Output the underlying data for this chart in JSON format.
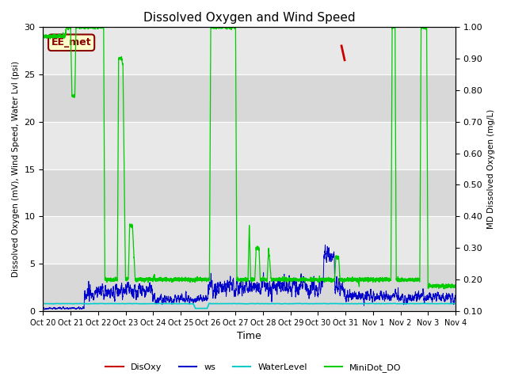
{
  "title": "Dissolved Oxygen and Wind Speed",
  "ylabel_left": "Dissolved Oxygen (mV), Wind Speed, Water Lvl (psi)",
  "ylabel_right": "MD Dissolved Oxygen (mg/L)",
  "xlabel": "Time",
  "ylim_left": [
    0,
    30
  ],
  "ylim_right": [
    0.1,
    1.0
  ],
  "plot_bg_color": "#e8e8e8",
  "annotation_text": "EE_met",
  "annotation_box_color": "#ffffcc",
  "annotation_box_edge": "#8b0000",
  "xtick_labels": [
    "Oct 20",
    "Oct 21",
    "Oct 22",
    "Oct 23",
    "Oct 24",
    "Oct 25",
    "Oct 26",
    "Oct 27",
    "Oct 28",
    "Oct 29",
    "Oct 30",
    "Oct 31",
    "Nov 1",
    "Nov 2",
    "Nov 3",
    "Nov 4"
  ],
  "colors": {
    "DisOxy": "#cc0000",
    "ws": "#0000cc",
    "WaterLevel": "#00cccc",
    "MiniDot_DO": "#00cc00"
  },
  "band_colors": [
    "#d8d8d8",
    "#e8e8e8"
  ],
  "band_edges": [
    0,
    5,
    10,
    15,
    20,
    25,
    30
  ]
}
